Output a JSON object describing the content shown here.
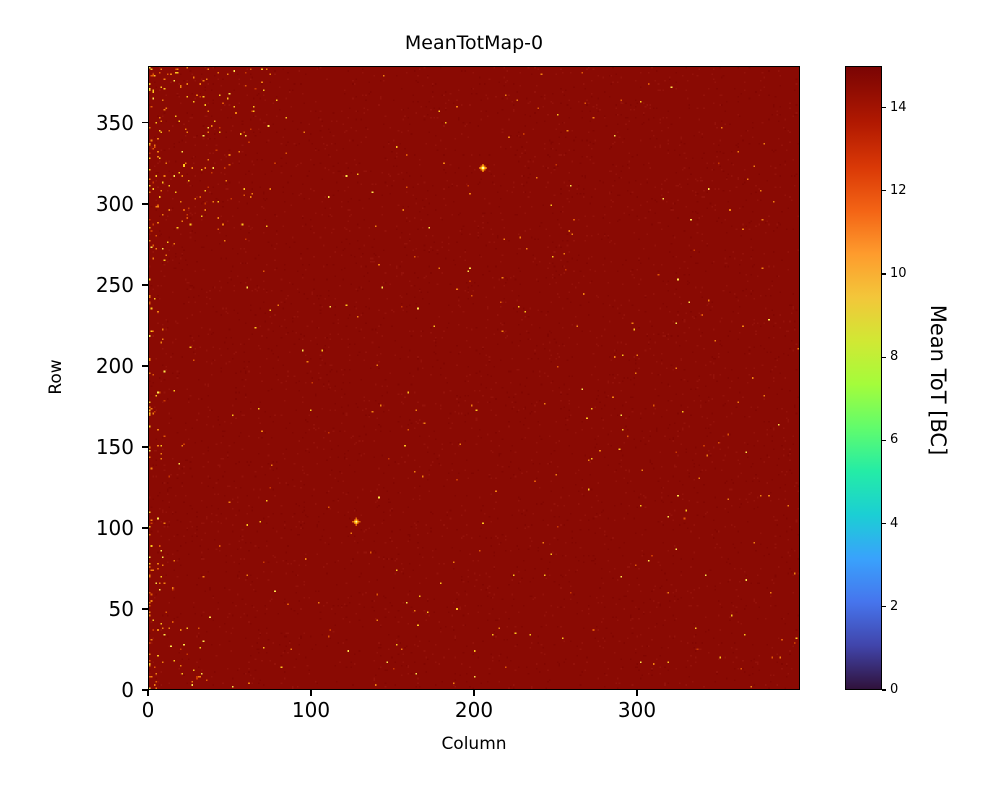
{
  "chart_data": {
    "type": "heatmap",
    "title": "MeanTotMap-0",
    "xlabel": "Column",
    "ylabel": "Row",
    "x_range": [
      0,
      400
    ],
    "y_range": [
      0,
      385
    ],
    "xticks": [
      0,
      100,
      200,
      300
    ],
    "yticks": [
      0,
      50,
      100,
      150,
      200,
      250,
      300,
      350
    ],
    "colorbar": {
      "label": "Mean ToT [BC]",
      "ticks": [
        0,
        2,
        4,
        6,
        8,
        10,
        12,
        14
      ],
      "vmin": 0,
      "vmax": 15,
      "colormap": "turbo",
      "colormap_stops": [
        {
          "t": 0.0,
          "c": "#30123b"
        },
        {
          "t": 0.07,
          "c": "#4145ab"
        },
        {
          "t": 0.14,
          "c": "#4675ed"
        },
        {
          "t": 0.21,
          "c": "#39a2fc"
        },
        {
          "t": 0.28,
          "c": "#1bcfd4"
        },
        {
          "t": 0.35,
          "c": "#24eca6"
        },
        {
          "t": 0.42,
          "c": "#61fc6c"
        },
        {
          "t": 0.49,
          "c": "#a4fc3b"
        },
        {
          "t": 0.56,
          "c": "#d1e834"
        },
        {
          "t": 0.63,
          "c": "#f3c63a"
        },
        {
          "t": 0.7,
          "c": "#fe9b2d"
        },
        {
          "t": 0.77,
          "c": "#f36315"
        },
        {
          "t": 0.84,
          "c": "#d93806"
        },
        {
          "t": 0.91,
          "c": "#b11901"
        },
        {
          "t": 1.0,
          "c": "#7a0403"
        }
      ]
    },
    "base_value": 15,
    "base_color": "#8a0a03",
    "noise_colors": [
      "#94120a",
      "#820601"
    ],
    "noise_count": 5000,
    "speckles": {
      "description": "sparse single-pixel low-ToT dots, denser along left edge and top-left corner",
      "seed": 1337,
      "uniform_count": 300,
      "left_edge_count": 120,
      "top_left_count": 130,
      "bottom_left_count": 40,
      "colors": [
        "#f2820f",
        "#f2820f",
        "#f2820f",
        "#ffc81e",
        "#ffc81e",
        "#e05a06",
        "#ffe84d",
        "#c93a02"
      ]
    },
    "hotspots": [
      {
        "column": 127,
        "row": 103,
        "note": "small diamond-shaped hot cluster"
      },
      {
        "column": 205,
        "row": 322,
        "note": "small diamond-shaped hot cluster"
      }
    ]
  }
}
